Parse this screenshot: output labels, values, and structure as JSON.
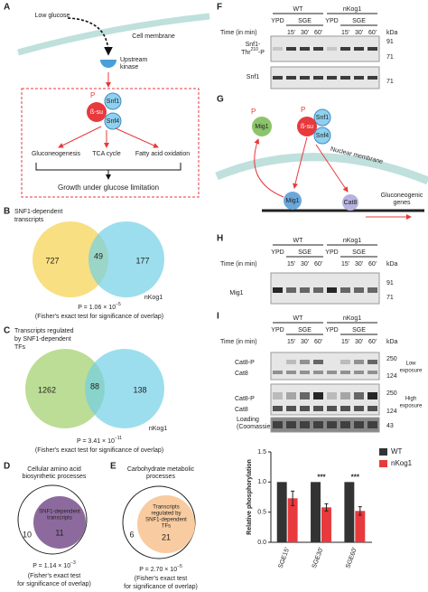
{
  "panel_labels": [
    "A",
    "B",
    "C",
    "D",
    "E",
    "F",
    "G",
    "H",
    "I"
  ],
  "a": {
    "stimulus": "Low glucose",
    "membrane": "Cell membrane",
    "kinase": [
      "Upstream",
      "kinase"
    ],
    "phospho": "P",
    "subunits": [
      "Snf1",
      "ß-su",
      "Snf4"
    ],
    "outputs": [
      "Gluconeogenesis",
      "TCA cycle",
      "Fatty acid oxidation"
    ],
    "outcome": "Growth under glucose limitation"
  },
  "b": {
    "set_label": [
      "SNF1-dependent",
      "transcripts"
    ],
    "counts": [
      727,
      49,
      177
    ],
    "other_set": "nKog1",
    "p_text": "P = 1.06 × 10",
    "p_exp": "−5",
    "test": "(Fisher's exact test for significance of overlap)"
  },
  "c": {
    "set_label": [
      "Transcripts regulated",
      "by SNF1-dependent",
      "TFs"
    ],
    "counts": [
      1262,
      88,
      138
    ],
    "other_set": "nKog1",
    "p_text": "P = 3.41 × 10",
    "p_exp": "−11",
    "test": "(Fisher's exact test for significance of overlap)"
  },
  "d": {
    "set_label": [
      "Cellular amino acid",
      "biosynthetic processes"
    ],
    "inner_label": [
      "SNF1-dependent",
      "transcripts"
    ],
    "counts": [
      10,
      11
    ],
    "p_text": "P = 1.14 × 10",
    "p_exp": "−3",
    "test": [
      "(Fisher's exact test",
      "for significance of overlap)"
    ]
  },
  "e": {
    "set_label": [
      "Carbohydrate metabolic",
      "processes"
    ],
    "inner_label": [
      "Transcripts",
      "regulated by",
      "SNF1-dependent",
      "TFs"
    ],
    "counts": [
      6,
      21
    ],
    "p_text": "P = 2.70 × 10",
    "p_exp": "−5",
    "test": [
      "(Fisher's exact test",
      "for significance of overlap)"
    ]
  },
  "blot_header": {
    "strains": [
      "WT",
      "nKog1"
    ],
    "media": [
      "YPD",
      "SGE"
    ],
    "times": [
      "15'",
      "30'",
      "60'"
    ],
    "time_label": "Time (in min)",
    "kda": "kDa"
  },
  "f": {
    "phospho_label": {
      "line1": "Snf1-",
      "base": "Thr",
      "sup": "210",
      "end": "-P"
    },
    "total_label": "Snf1",
    "markers": [
      "91",
      "71",
      "71"
    ]
  },
  "g": {
    "phospho": [
      "P",
      "P"
    ],
    "mig1": "Mig1",
    "subunits": [
      "ß-su",
      "Snf1",
      "Snf4"
    ],
    "membrane": "Nuclear membrane",
    "cat8": "Cat8",
    "genes": [
      "Gluconeogenic",
      "genes"
    ]
  },
  "h": {
    "label": "Mig1",
    "markers": [
      "91",
      "71"
    ]
  },
  "i": {
    "band_labels": [
      "Cat8-P",
      "Cat8",
      "Cat8-P",
      "Cat8"
    ],
    "exposures": [
      [
        "Low",
        "exposure"
      ],
      [
        "High",
        "exposure"
      ]
    ],
    "loading": [
      "Loading",
      "(Coomassie)"
    ],
    "markers": [
      "250",
      "124",
      "250",
      "124",
      "43"
    ],
    "chart_data": {
      "type": "bar",
      "y_label": "Relative phosphorylation",
      "categories": [
        "SGE15'",
        "SGE30'",
        "SGE60'"
      ],
      "series": [
        {
          "name": "WT",
          "color": "#333333",
          "values": [
            1,
            1,
            1
          ]
        },
        {
          "name": "nKog1",
          "color": "#e8393d",
          "values": [
            0.73,
            0.58,
            0.52
          ],
          "errors": [
            0.12,
            0.06,
            0.07
          ]
        }
      ],
      "significance": [
        null,
        "***",
        "***"
      ],
      "ylim": [
        0,
        1.5
      ],
      "yticks": [
        {
          "value": 0,
          "label": "0.0"
        },
        {
          "value": 0.5,
          "label": "0.5"
        },
        {
          "value": 1,
          "label": "1.0"
        },
        {
          "value": 1.5,
          "label": "1.5"
        }
      ],
      "legend": "right"
    }
  }
}
